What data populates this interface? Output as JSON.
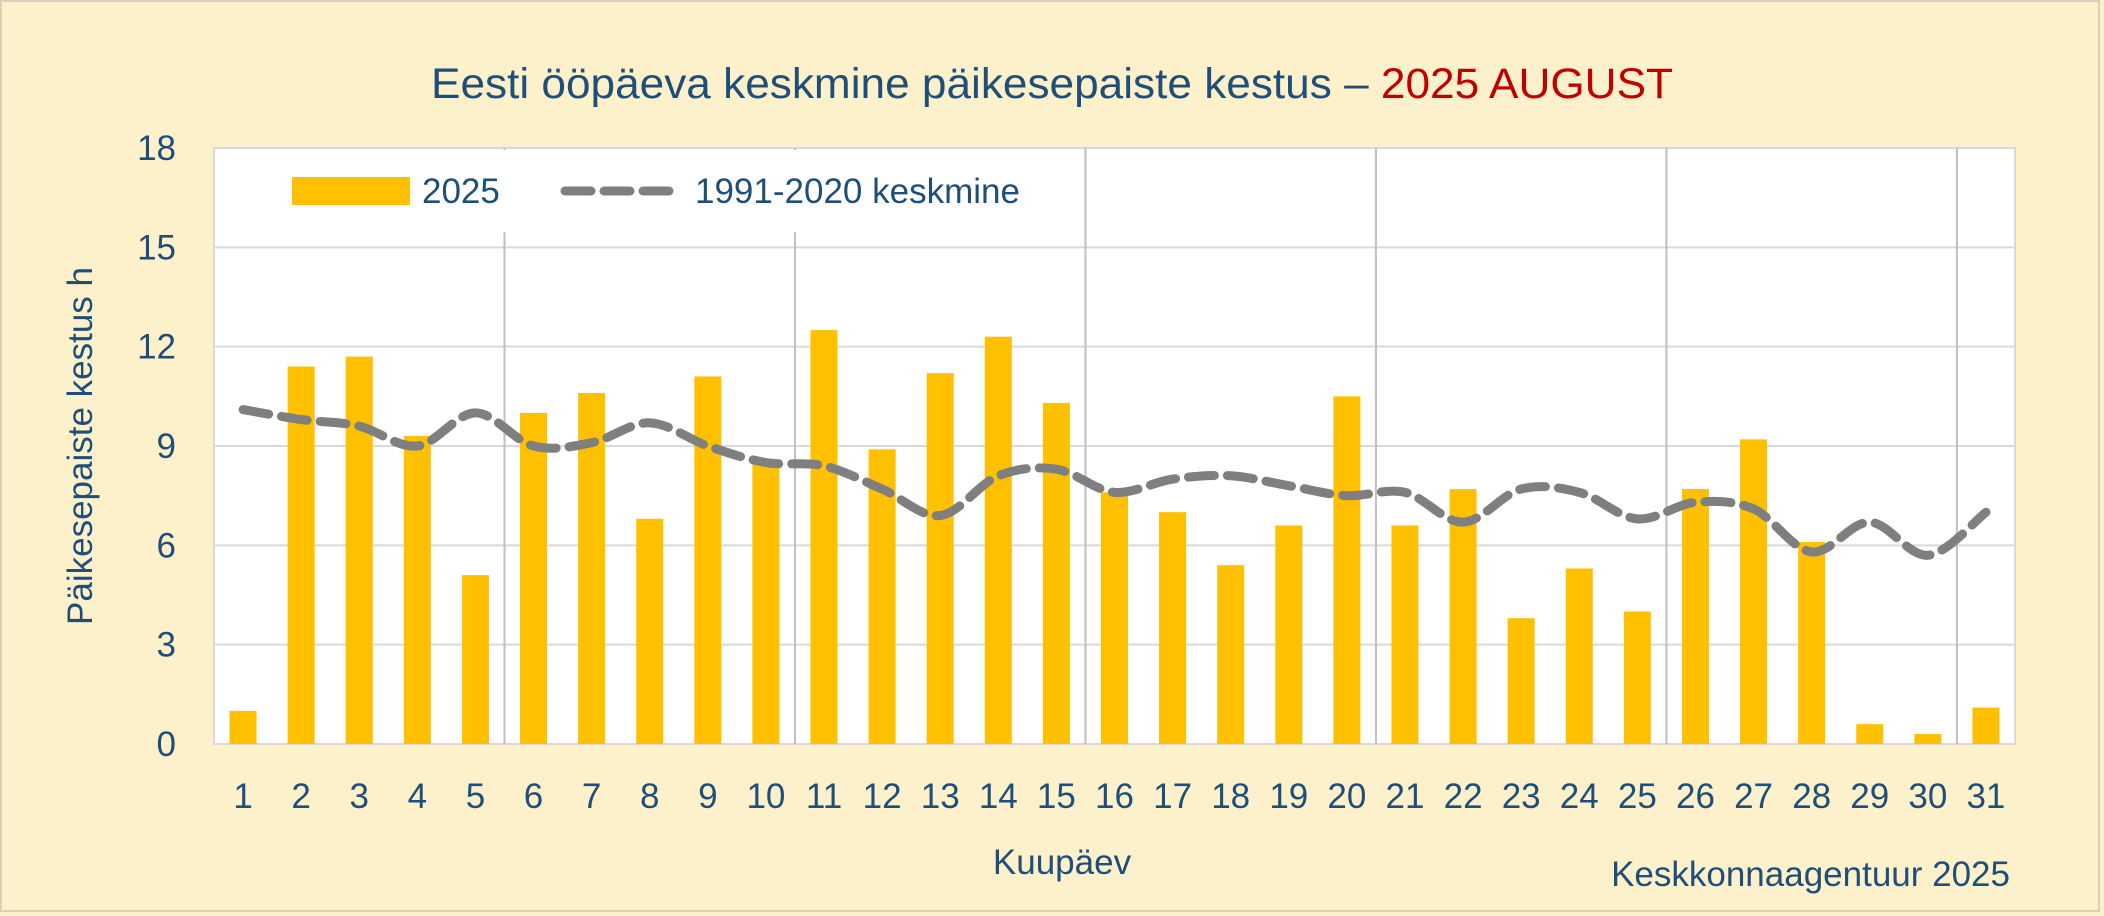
{
  "chart_data": {
    "type": "bar",
    "title": "Eesti ööpäeva keskmine päikesepaiste kestus – ",
    "title_highlight": "2025 AUGUST",
    "xlabel": "Kuupäev",
    "ylabel": "Päikesepaiste kestus h",
    "source": "Keskkonnaagentuur 2025",
    "ylim": [
      0,
      18
    ],
    "yticks": [
      0,
      3,
      6,
      9,
      12,
      15,
      18
    ],
    "legend_position": "top-left",
    "grid": true,
    "categories": [
      "1",
      "2",
      "3",
      "4",
      "5",
      "6",
      "7",
      "8",
      "9",
      "10",
      "11",
      "12",
      "13",
      "14",
      "15",
      "16",
      "17",
      "18",
      "19",
      "20",
      "21",
      "22",
      "23",
      "24",
      "25",
      "26",
      "27",
      "28",
      "29",
      "30",
      "31"
    ],
    "series": [
      {
        "name": "2025",
        "kind": "bar",
        "color": "#ffc000",
        "values": [
          1.0,
          11.4,
          11.7,
          9.3,
          5.1,
          10.0,
          10.6,
          6.8,
          11.1,
          8.5,
          12.5,
          8.9,
          11.2,
          12.3,
          10.3,
          7.6,
          7.0,
          5.4,
          6.6,
          10.5,
          6.6,
          7.7,
          3.8,
          5.3,
          4.0,
          7.7,
          9.2,
          6.1,
          0.6,
          0.3,
          1.1
        ]
      },
      {
        "name": "1991-2020 keskmine",
        "kind": "line",
        "style": "dashed",
        "color": "#7f7f7f",
        "values": [
          10.1,
          9.8,
          9.6,
          9.0,
          10.0,
          9.0,
          9.1,
          9.7,
          9.0,
          8.5,
          8.4,
          7.7,
          6.9,
          8.1,
          8.3,
          7.6,
          8.0,
          8.1,
          7.8,
          7.5,
          7.6,
          6.7,
          7.7,
          7.6,
          6.8,
          7.3,
          7.1,
          5.8,
          6.7,
          5.7,
          7.0
        ]
      }
    ]
  }
}
